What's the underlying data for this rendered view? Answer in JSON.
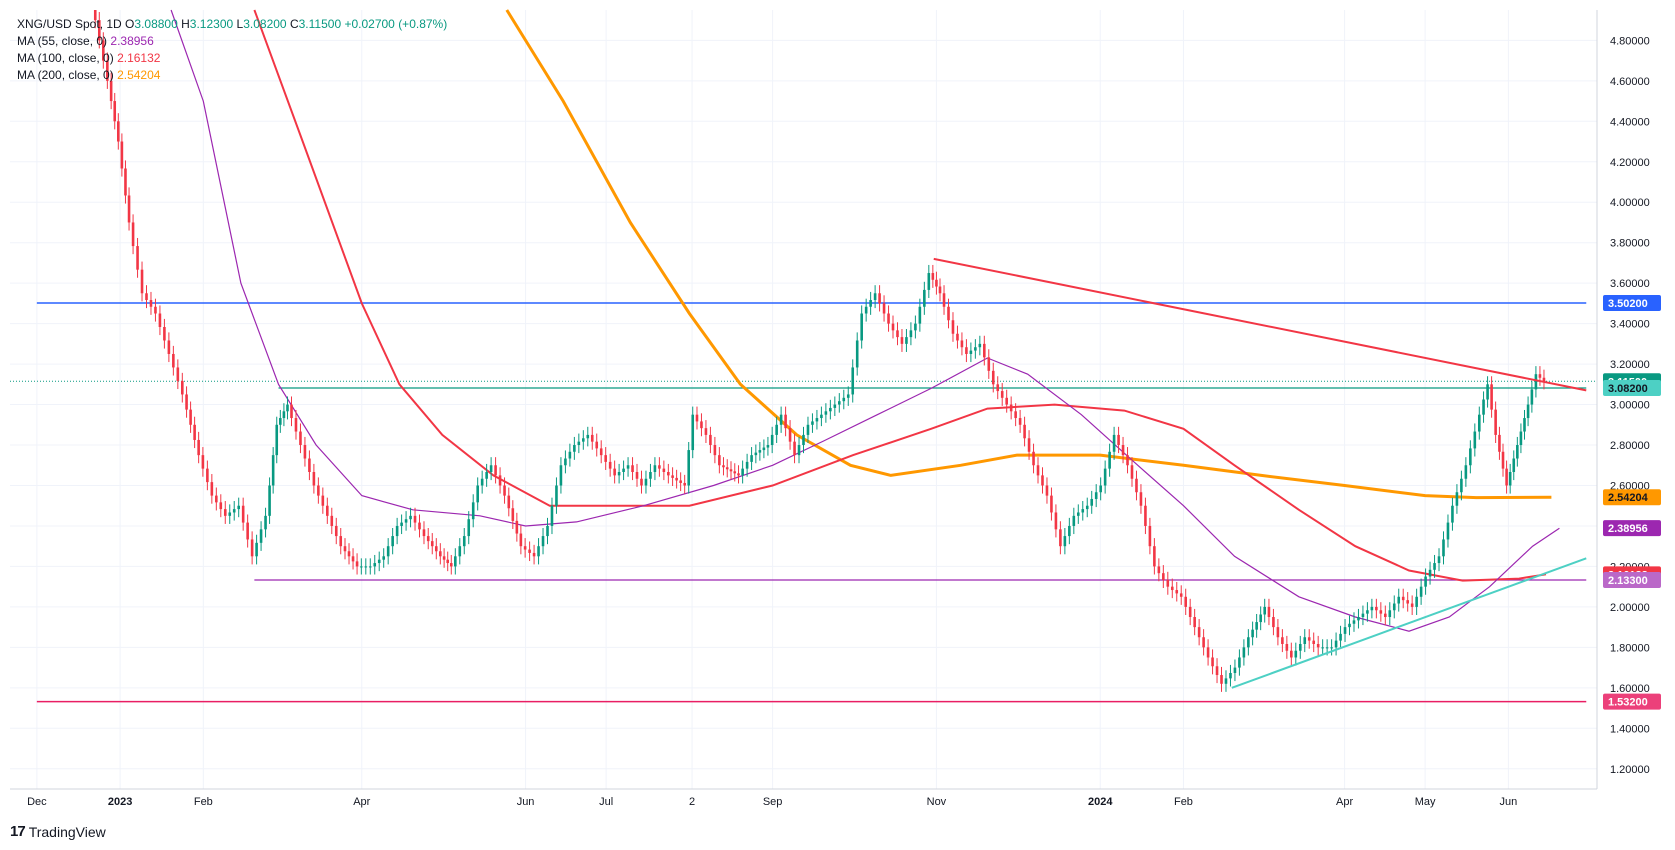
{
  "legend": {
    "symbol": "XNG/USD Spot, 1D",
    "open_label": "O",
    "open": "3.08800",
    "high_label": "H",
    "high": "3.12300",
    "low_label": "L",
    "low": "3.08200",
    "close_label": "C",
    "close": "3.11500",
    "change": "+0.02700 (+0.87%)",
    "ma55_label": "MA (55, close, 0)",
    "ma55_value": "2.38956",
    "ma100_label": "MA (100, close, 0)",
    "ma100_value": "2.16132",
    "ma200_label": "MA (200, close, 0)",
    "ma200_value": "2.54204"
  },
  "brand": {
    "name": "TradingView"
  },
  "colors": {
    "up": "#089981",
    "down": "#f23645",
    "ma55": "#9c27b0",
    "ma100": "#f23645",
    "ma200": "#ff9800",
    "blue_line": "#2962ff",
    "pink_line": "#e91e63",
    "support_line": "#9c27b0",
    "trend_up": "#4dd0c4",
    "trend_down": "#f23645",
    "teal_line": "#089981"
  },
  "chart_data": {
    "type": "candlestick",
    "title": "XNG/USD Spot, 1D",
    "ylim": [
      1.1,
      4.95
    ],
    "y_ticks": [
      "1.20000",
      "1.40000",
      "1.60000",
      "1.80000",
      "2.00000",
      "2.20000",
      "2.40000",
      "2.60000",
      "2.80000",
      "3.00000",
      "3.20000",
      "3.40000",
      "3.60000",
      "3.80000",
      "4.00000",
      "4.20000",
      "4.40000",
      "4.60000",
      "4.80000"
    ],
    "x_labels": [
      {
        "label": "Dec",
        "x": "2022-12-01",
        "bold": false
      },
      {
        "label": "2023",
        "x": "2023-01-01",
        "bold": true
      },
      {
        "label": "Feb",
        "x": "2023-02-01",
        "bold": false
      },
      {
        "label": "Apr",
        "x": "2023-04-01",
        "bold": false
      },
      {
        "label": "Jun",
        "x": "2023-06-01",
        "bold": false
      },
      {
        "label": "Jul",
        "x": "2023-07-01",
        "bold": false
      },
      {
        "label": "2",
        "x": "2023-08-02",
        "bold": false
      },
      {
        "label": "Sep",
        "x": "2023-09-01",
        "bold": false
      },
      {
        "label": "Nov",
        "x": "2023-11-01",
        "bold": false
      },
      {
        "label": "2024",
        "x": "2024-01-01",
        "bold": true
      },
      {
        "label": "Feb",
        "x": "2024-02-01",
        "bold": false
      },
      {
        "label": "Apr",
        "x": "2024-04-01",
        "bold": false
      },
      {
        "label": "May",
        "x": "2024-05-01",
        "bold": false
      },
      {
        "label": "Jun",
        "x": "2024-06-01",
        "bold": false
      }
    ],
    "price_series": [
      [
        "2022-12-22",
        5.0
      ],
      [
        "2022-12-28",
        4.6
      ],
      [
        "2023-01-01",
        4.3
      ],
      [
        "2023-01-05",
        3.9
      ],
      [
        "2023-01-10",
        3.55
      ],
      [
        "2023-01-15",
        3.45
      ],
      [
        "2023-01-20",
        3.25
      ],
      [
        "2023-01-25",
        3.05
      ],
      [
        "2023-01-31",
        2.75
      ],
      [
        "2023-02-05",
        2.55
      ],
      [
        "2023-02-10",
        2.45
      ],
      [
        "2023-02-15",
        2.5
      ],
      [
        "2023-02-20",
        2.25
      ],
      [
        "2023-02-25",
        2.45
      ],
      [
        "2023-03-01",
        2.9
      ],
      [
        "2023-03-05",
        3.0
      ],
      [
        "2023-03-10",
        2.8
      ],
      [
        "2023-03-15",
        2.6
      ],
      [
        "2023-03-20",
        2.45
      ],
      [
        "2023-03-25",
        2.3
      ],
      [
        "2023-03-31",
        2.2
      ],
      [
        "2023-04-05",
        2.2
      ],
      [
        "2023-04-10",
        2.25
      ],
      [
        "2023-04-15",
        2.4
      ],
      [
        "2023-04-20",
        2.45
      ],
      [
        "2023-04-25",
        2.35
      ],
      [
        "2023-05-01",
        2.25
      ],
      [
        "2023-05-05",
        2.2
      ],
      [
        "2023-05-10",
        2.35
      ],
      [
        "2023-05-15",
        2.6
      ],
      [
        "2023-05-20",
        2.7
      ],
      [
        "2023-05-25",
        2.55
      ],
      [
        "2023-05-31",
        2.3
      ],
      [
        "2023-06-05",
        2.25
      ],
      [
        "2023-06-10",
        2.4
      ],
      [
        "2023-06-15",
        2.7
      ],
      [
        "2023-06-20",
        2.8
      ],
      [
        "2023-06-25",
        2.85
      ],
      [
        "2023-06-30",
        2.75
      ],
      [
        "2023-07-05",
        2.65
      ],
      [
        "2023-07-10",
        2.7
      ],
      [
        "2023-07-15",
        2.6
      ],
      [
        "2023-07-20",
        2.7
      ],
      [
        "2023-07-25",
        2.65
      ],
      [
        "2023-07-31",
        2.6
      ],
      [
        "2023-08-03",
        2.95
      ],
      [
        "2023-08-08",
        2.85
      ],
      [
        "2023-08-13",
        2.7
      ],
      [
        "2023-08-20",
        2.65
      ],
      [
        "2023-08-25",
        2.75
      ],
      [
        "2023-08-31",
        2.8
      ],
      [
        "2023-09-05",
        2.95
      ],
      [
        "2023-09-10",
        2.75
      ],
      [
        "2023-09-15",
        2.9
      ],
      [
        "2023-09-20",
        2.95
      ],
      [
        "2023-09-25",
        3.0
      ],
      [
        "2023-09-30",
        3.05
      ],
      [
        "2023-10-05",
        3.45
      ],
      [
        "2023-10-10",
        3.55
      ],
      [
        "2023-10-15",
        3.4
      ],
      [
        "2023-10-20",
        3.3
      ],
      [
        "2023-10-25",
        3.4
      ],
      [
        "2023-10-30",
        3.65
      ],
      [
        "2023-11-03",
        3.55
      ],
      [
        "2023-11-08",
        3.35
      ],
      [
        "2023-11-13",
        3.25
      ],
      [
        "2023-11-18",
        3.3
      ],
      [
        "2023-11-23",
        3.1
      ],
      [
        "2023-11-28",
        3.0
      ],
      [
        "2023-12-03",
        2.9
      ],
      [
        "2023-12-08",
        2.7
      ],
      [
        "2023-12-13",
        2.55
      ],
      [
        "2023-12-18",
        2.3
      ],
      [
        "2023-12-23",
        2.45
      ],
      [
        "2023-12-28",
        2.5
      ],
      [
        "2024-01-02",
        2.6
      ],
      [
        "2024-01-07",
        2.85
      ],
      [
        "2024-01-12",
        2.7
      ],
      [
        "2024-01-17",
        2.5
      ],
      [
        "2024-01-22",
        2.2
      ],
      [
        "2024-01-27",
        2.1
      ],
      [
        "2024-02-01",
        2.05
      ],
      [
        "2024-02-06",
        1.9
      ],
      [
        "2024-02-11",
        1.75
      ],
      [
        "2024-02-16",
        1.62
      ],
      [
        "2024-02-21",
        1.7
      ],
      [
        "2024-02-26",
        1.85
      ],
      [
        "2024-03-03",
        2.0
      ],
      [
        "2024-03-08",
        1.85
      ],
      [
        "2024-03-13",
        1.75
      ],
      [
        "2024-03-18",
        1.85
      ],
      [
        "2024-03-23",
        1.8
      ],
      [
        "2024-03-28",
        1.8
      ],
      [
        "2024-04-02",
        1.9
      ],
      [
        "2024-04-07",
        1.95
      ],
      [
        "2024-04-12",
        2.0
      ],
      [
        "2024-04-17",
        1.95
      ],
      [
        "2024-04-22",
        2.05
      ],
      [
        "2024-04-27",
        2.0
      ],
      [
        "2024-05-02",
        2.15
      ],
      [
        "2024-05-07",
        2.25
      ],
      [
        "2024-05-12",
        2.5
      ],
      [
        "2024-05-17",
        2.7
      ],
      [
        "2024-05-22",
        2.95
      ],
      [
        "2024-05-25",
        3.1
      ],
      [
        "2024-05-28",
        2.85
      ],
      [
        "2024-06-01",
        2.6
      ],
      [
        "2024-06-05",
        2.8
      ],
      [
        "2024-06-09",
        3.0
      ],
      [
        "2024-06-12",
        3.15
      ],
      [
        "2024-06-15",
        3.115
      ]
    ],
    "ma55": [
      [
        "2023-01-20",
        5.0
      ],
      [
        "2023-02-01",
        4.5
      ],
      [
        "2023-02-15",
        3.6
      ],
      [
        "2023-03-01",
        3.1
      ],
      [
        "2023-03-15",
        2.8
      ],
      [
        "2023-04-01",
        2.55
      ],
      [
        "2023-04-20",
        2.48
      ],
      [
        "2023-05-15",
        2.45
      ],
      [
        "2023-06-01",
        2.4
      ],
      [
        "2023-06-20",
        2.42
      ],
      [
        "2023-07-15",
        2.5
      ],
      [
        "2023-08-10",
        2.6
      ],
      [
        "2023-09-01",
        2.7
      ],
      [
        "2023-09-20",
        2.82
      ],
      [
        "2023-10-10",
        2.95
      ],
      [
        "2023-10-30",
        3.08
      ],
      [
        "2023-11-20",
        3.23
      ],
      [
        "2023-12-05",
        3.15
      ],
      [
        "2023-12-25",
        2.95
      ],
      [
        "2024-01-15",
        2.7
      ],
      [
        "2024-02-01",
        2.5
      ],
      [
        "2024-02-20",
        2.25
      ],
      [
        "2024-03-15",
        2.05
      ],
      [
        "2024-04-05",
        1.95
      ],
      [
        "2024-04-25",
        1.88
      ],
      [
        "2024-05-10",
        1.95
      ],
      [
        "2024-05-25",
        2.1
      ],
      [
        "2024-06-10",
        2.3
      ],
      [
        "2024-06-20",
        2.389
      ]
    ],
    "ma100": [
      [
        "2023-02-20",
        5.0
      ],
      [
        "2023-03-10",
        4.3
      ],
      [
        "2023-04-01",
        3.5
      ],
      [
        "2023-04-15",
        3.1
      ],
      [
        "2023-05-01",
        2.85
      ],
      [
        "2023-05-20",
        2.65
      ],
      [
        "2023-06-10",
        2.5
      ],
      [
        "2023-07-01",
        2.5
      ],
      [
        "2023-08-01",
        2.5
      ],
      [
        "2023-09-01",
        2.6
      ],
      [
        "2023-10-01",
        2.75
      ],
      [
        "2023-10-30",
        2.88
      ],
      [
        "2023-11-20",
        2.98
      ],
      [
        "2023-12-15",
        3.0
      ],
      [
        "2024-01-10",
        2.97
      ],
      [
        "2024-02-01",
        2.88
      ],
      [
        "2024-02-20",
        2.7
      ],
      [
        "2024-03-15",
        2.48
      ],
      [
        "2024-04-05",
        2.3
      ],
      [
        "2024-04-25",
        2.18
      ],
      [
        "2024-05-15",
        2.13
      ],
      [
        "2024-06-05",
        2.14
      ],
      [
        "2024-06-15",
        2.161
      ]
    ],
    "ma200": [
      [
        "2023-05-25",
        5.0
      ],
      [
        "2023-06-15",
        4.5
      ],
      [
        "2023-07-10",
        3.9
      ],
      [
        "2023-08-01",
        3.45
      ],
      [
        "2023-08-20",
        3.1
      ],
      [
        "2023-09-10",
        2.85
      ],
      [
        "2023-09-30",
        2.7
      ],
      [
        "2023-10-15",
        2.65
      ],
      [
        "2023-11-10",
        2.7
      ],
      [
        "2023-12-01",
        2.75
      ],
      [
        "2024-01-01",
        2.75
      ],
      [
        "2024-02-01",
        2.7
      ],
      [
        "2024-03-01",
        2.65
      ],
      [
        "2024-04-01",
        2.6
      ],
      [
        "2024-05-01",
        2.55
      ],
      [
        "2024-05-20",
        2.54
      ],
      [
        "2024-06-17",
        2.542
      ]
    ],
    "h_lines": [
      {
        "name": "resistance-3.502",
        "y": 3.502,
        "from": "2022-12-01",
        "to": "2024-06-30",
        "color": "#2962ff",
        "width": 1.5
      },
      {
        "name": "support-1.532",
        "y": 1.532,
        "from": "2022-12-01",
        "to": "2024-06-30",
        "color": "#e91e63",
        "width": 1.5
      },
      {
        "name": "support-2.133",
        "y": 2.133,
        "from": "2023-02-20",
        "to": "2024-06-30",
        "color": "#9c27b0",
        "width": 1.2
      },
      {
        "name": "level-3.082",
        "y": 3.082,
        "from": "2023-03-01",
        "to": "2024-06-30",
        "color": "#089981",
        "width": 1.2
      }
    ],
    "trendlines": [
      {
        "name": "descending-trendline",
        "p1": [
          "2023-10-31",
          3.72
        ],
        "p2": [
          "2024-06-30",
          3.07
        ],
        "color": "#f23645",
        "width": 2
      },
      {
        "name": "ascending-trendline",
        "p1": [
          "2024-02-19",
          1.6
        ],
        "p2": [
          "2024-06-30",
          2.24
        ],
        "color": "#4dd0c4",
        "width": 2
      }
    ],
    "last_price_dotted": 3.115,
    "price_badges": [
      {
        "label": "3.50200",
        "y": 3.502,
        "bg": "#2962ff",
        "fg": "#ffffff"
      },
      {
        "label": "3.11500",
        "y": 3.115,
        "bg": "#089981",
        "fg": "#ffffff"
      },
      {
        "label": "3.08200",
        "y": 3.082,
        "bg": "#4dd0c4",
        "fg": "#131722"
      },
      {
        "label": "2.54204",
        "y": 2.542,
        "bg": "#ff9800",
        "fg": "#131722"
      },
      {
        "label": "2.38956",
        "y": 2.389,
        "bg": "#9c27b0",
        "fg": "#ffffff"
      },
      {
        "label": "2.16132",
        "y": 2.161,
        "bg": "#f23645",
        "fg": "#ffffff"
      },
      {
        "label": "2.13300",
        "y": 2.133,
        "bg": "#ba68c8",
        "fg": "#ffffff"
      },
      {
        "label": "1.53200",
        "y": 1.532,
        "bg": "#ec407a",
        "fg": "#ffffff"
      }
    ]
  }
}
